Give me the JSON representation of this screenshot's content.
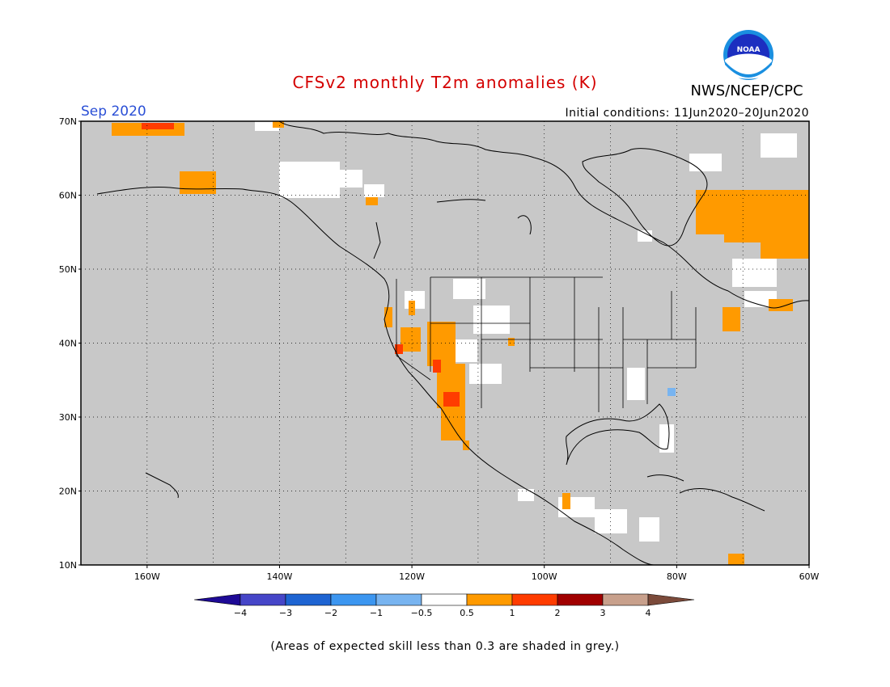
{
  "title": "CFSv2 monthly T2m anomalies (K)",
  "agency": "NWS/NCEP/CPC",
  "logo_text": "NOAA",
  "month": "Sep 2020",
  "initial_conditions": "Initial conditions: 11Jun2020–20Jun2020",
  "footnote": "(Areas of expected skill less than 0.3 are shaded in grey.)",
  "map": {
    "lon_range": [
      -170,
      -60
    ],
    "lat_range": [
      10,
      70
    ],
    "lat_labels": [
      "70N",
      "60N",
      "50N",
      "40N",
      "30N",
      "20N",
      "10N"
    ],
    "lon_labels": [
      "160W",
      "140W",
      "120W",
      "100W",
      "80W",
      "60W"
    ],
    "background_color": "#c8c8c8",
    "grid": true
  },
  "colorbar": {
    "labels": [
      "−4",
      "−3",
      "−2",
      "−1",
      "−0.5",
      "0.5",
      "1",
      "2",
      "3",
      "4"
    ],
    "colors": [
      "#1e0a96",
      "#4646c8",
      "#1e64d2",
      "#3c96f0",
      "#78b4f0",
      "#ffffff",
      "#ff9a00",
      "#ff3c00",
      "#a00000",
      "#c8a08c",
      "#7b4a3a"
    ]
  }
}
